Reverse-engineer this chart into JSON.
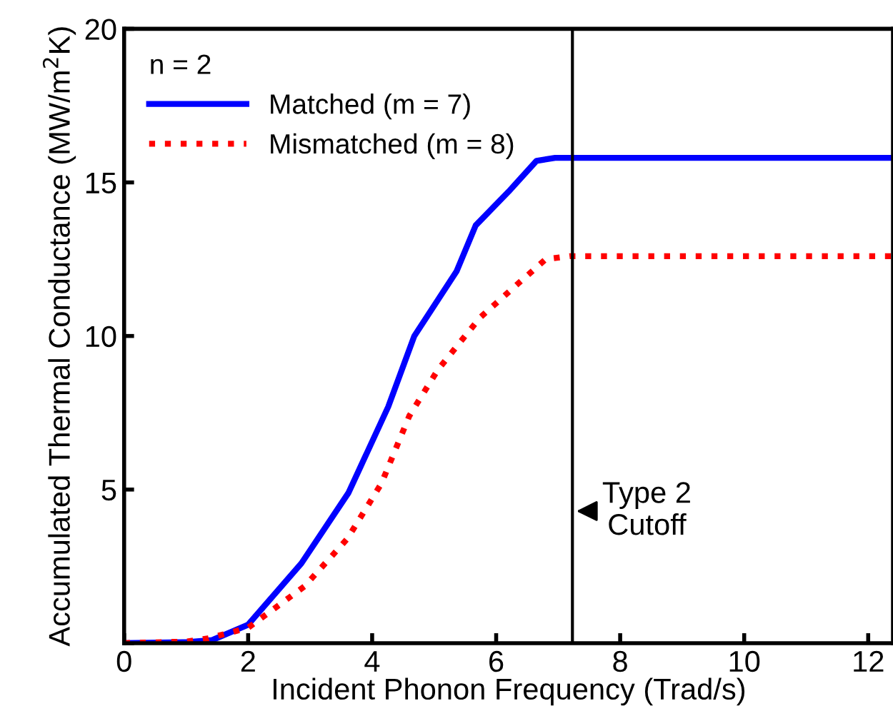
{
  "chart_data": {
    "type": "line",
    "xlabel": "Incident Phonon Frequency (Trad/s)",
    "ylabel": "Accumulated Thermal Conductance (MW/m$^{2}$K)",
    "legend_title": "n = 2",
    "legend": "top left",
    "grid": false,
    "xlim": [
      0,
      12.4
    ],
    "xticks": [
      0,
      2,
      4,
      6,
      8,
      10,
      12
    ],
    "ylim": [
      0,
      20
    ],
    "yticks": [
      {
        "value": 0,
        "label": null
      },
      5,
      10,
      15,
      20
    ],
    "ref_lines": [
      {
        "axis": "x",
        "value": 7.23,
        "color": "#000000",
        "line_style": "solid"
      }
    ],
    "annotations": [
      {
        "text": "Type 2\nCutoff",
        "x": 7.23,
        "y": 4.3
      }
    ],
    "series": [
      {
        "name": "Matched (m = 7)",
        "color": "#0000ff",
        "line_style": "solid",
        "x": [
          0,
          1.0,
          1.42,
          2.0,
          2.86,
          3.62,
          4.26,
          4.68,
          5.36,
          5.67,
          6.2,
          6.65,
          6.95,
          12.4
        ],
        "values": [
          0,
          0.03,
          0.1,
          0.6,
          2.6,
          4.9,
          7.7,
          10.0,
          12.1,
          13.6,
          14.7,
          15.7,
          15.8,
          15.8
        ]
      },
      {
        "name": "Mismatched (m = 8)",
        "color": "#ff0000",
        "line_style": "dotted",
        "x": [
          0,
          1.0,
          1.35,
          2.0,
          2.91,
          3.6,
          4.15,
          4.6,
          5.06,
          5.74,
          6.35,
          6.8,
          7.2,
          12.4
        ],
        "values": [
          0,
          0.05,
          0.15,
          0.5,
          1.85,
          3.4,
          5.2,
          7.4,
          8.9,
          10.6,
          11.7,
          12.5,
          12.6,
          12.6
        ]
      }
    ]
  }
}
